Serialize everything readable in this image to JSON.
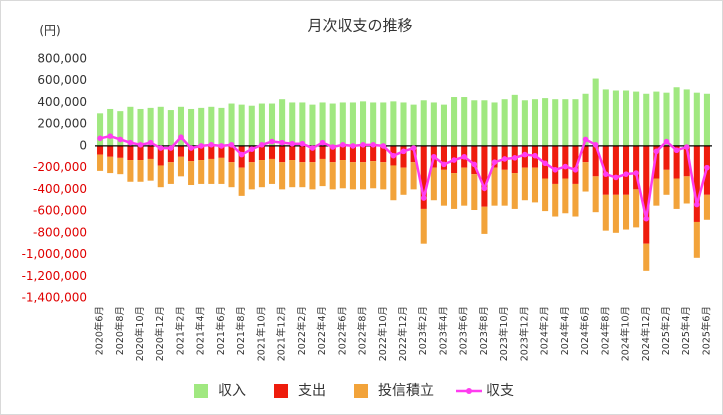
{
  "chart_data": {
    "type": "stacked_bar_line",
    "title": "月次収支の推移",
    "y_unit_label": "(円)",
    "categories": [
      "2020年6月",
      null,
      "2020年8月",
      null,
      "2020年10月",
      null,
      "2020年12月",
      null,
      "2021年2月",
      null,
      "2021年4月",
      null,
      "2021年6月",
      null,
      "2021年8月",
      null,
      "2021年10月",
      null,
      "2021年12月",
      null,
      "2022年2月",
      null,
      "2022年4月",
      null,
      "2022年6月",
      null,
      "2022年8月",
      null,
      "2022年10月",
      null,
      "2022年12月",
      null,
      "2023年2月",
      null,
      "2023年4月",
      null,
      "2023年6月",
      null,
      "2023年8月",
      null,
      "2023年10月",
      null,
      "2023年12月",
      null,
      "2024年2月",
      null,
      "2024年4月",
      null,
      "2024年6月",
      null,
      "2024年8月",
      null,
      "2024年10月",
      null,
      "2024年12月",
      null,
      "2025年2月",
      null,
      "2025年4月",
      null,
      "2025年6月"
    ],
    "series": [
      {
        "name": "収入",
        "kind": "bar",
        "color": "#a0e880",
        "values": [
          300000,
          340000,
          320000,
          360000,
          340000,
          350000,
          360000,
          330000,
          360000,
          340000,
          350000,
          360000,
          350000,
          390000,
          380000,
          370000,
          390000,
          390000,
          430000,
          400000,
          400000,
          380000,
          400000,
          390000,
          400000,
          400000,
          410000,
          400000,
          400000,
          410000,
          400000,
          380000,
          420000,
          400000,
          380000,
          450000,
          450000,
          420000,
          420000,
          400000,
          430000,
          470000,
          420000,
          430000,
          440000,
          430000,
          430000,
          430000,
          480000,
          620000,
          520000,
          510000,
          510000,
          500000,
          480000,
          500000,
          490000,
          540000,
          520000,
          490000,
          480000
        ]
      },
      {
        "name": "支出",
        "kind": "bar",
        "color": "#ee1c0c",
        "values": [
          -80000,
          -100000,
          -110000,
          -130000,
          -130000,
          -120000,
          -180000,
          -150000,
          -100000,
          -140000,
          -130000,
          -120000,
          -110000,
          -150000,
          -200000,
          -150000,
          -130000,
          -120000,
          -150000,
          -130000,
          -150000,
          -150000,
          -120000,
          -150000,
          -130000,
          -150000,
          -150000,
          -140000,
          -150000,
          -180000,
          -200000,
          -150000,
          -580000,
          -200000,
          -220000,
          -250000,
          -200000,
          -260000,
          -560000,
          -200000,
          -220000,
          -250000,
          -200000,
          -200000,
          -300000,
          -350000,
          -300000,
          -350000,
          -150000,
          -280000,
          -450000,
          -450000,
          -450000,
          -400000,
          -900000,
          -300000,
          -220000,
          -300000,
          -280000,
          -700000,
          -450000
        ]
      },
      {
        "name": "投信積立",
        "kind": "bar",
        "color": "#f2a33a",
        "values": [
          -150000,
          -150000,
          -150000,
          -200000,
          -200000,
          -200000,
          -200000,
          -200000,
          -180000,
          -220000,
          -220000,
          -230000,
          -240000,
          -230000,
          -260000,
          -250000,
          -250000,
          -230000,
          -250000,
          -250000,
          -230000,
          -250000,
          -250000,
          -250000,
          -260000,
          -250000,
          -250000,
          -250000,
          -250000,
          -320000,
          -250000,
          -250000,
          -320000,
          -300000,
          -330000,
          -330000,
          -350000,
          -330000,
          -250000,
          -350000,
          -330000,
          -330000,
          -300000,
          -320000,
          -300000,
          -300000,
          -320000,
          -300000,
          -270000,
          -330000,
          -330000,
          -350000,
          -320000,
          -350000,
          -250000,
          -250000,
          -230000,
          -280000,
          -250000,
          -330000,
          -230000
        ]
      },
      {
        "name": "収支",
        "kind": "line",
        "color": "#ff3cf0",
        "values": [
          70000,
          90000,
          60000,
          30000,
          10000,
          30000,
          -20000,
          -20000,
          80000,
          -20000,
          0,
          10000,
          0,
          10000,
          -80000,
          -30000,
          10000,
          40000,
          30000,
          20000,
          20000,
          -20000,
          30000,
          -10000,
          10000,
          0,
          10000,
          10000,
          0,
          -90000,
          -50000,
          -20000,
          -480000,
          -100000,
          -170000,
          -130000,
          -100000,
          -170000,
          -390000,
          -150000,
          -120000,
          -110000,
          -80000,
          -90000,
          -160000,
          -220000,
          -190000,
          -220000,
          60000,
          10000,
          -260000,
          -290000,
          -260000,
          -250000,
          -670000,
          -50000,
          40000,
          -40000,
          -10000,
          -540000,
          -200000
        ]
      }
    ],
    "ylim": [
      -1400000,
      800000
    ],
    "yticks": [
      {
        "value": -1400000,
        "label": "-1,400,000"
      },
      {
        "value": -1200000,
        "label": "-1,200,000"
      },
      {
        "value": -1000000,
        "label": "-1,000,000"
      },
      {
        "value": -800000,
        "label": "-800,000"
      },
      {
        "value": -600000,
        "label": "-600,000"
      },
      {
        "value": -400000,
        "label": "-400,000"
      },
      {
        "value": -200000,
        "label": "-200,000"
      },
      0,
      {
        "value": 200000,
        "label": "200,000"
      },
      {
        "value": 400000,
        "label": "400,000"
      },
      {
        "value": 600000,
        "label": "600,000"
      },
      {
        "value": 800000,
        "label": "800,000"
      }
    ],
    "legend": "bottom"
  }
}
